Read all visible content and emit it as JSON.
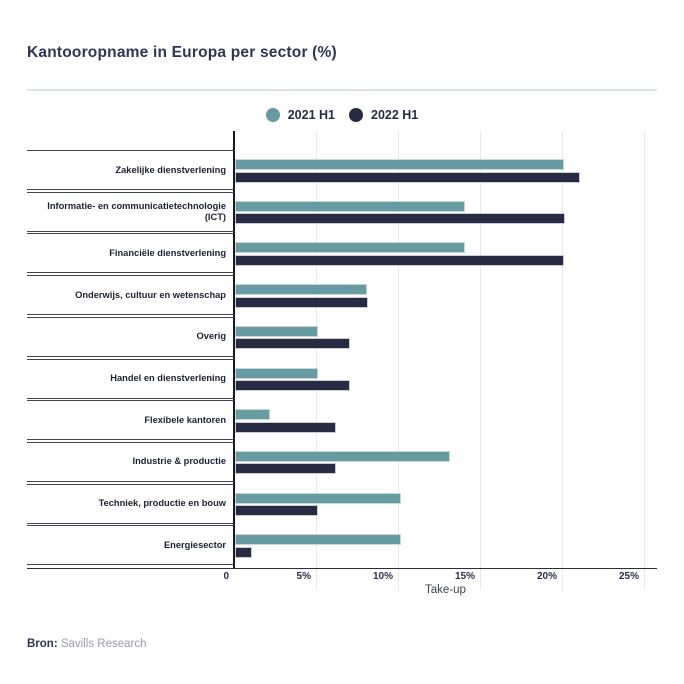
{
  "title": "Kantooropname in Europa per sector (%)",
  "chart_data": {
    "type": "bar",
    "orientation": "horizontal",
    "title": "Kantooropname in Europa per sector (%)",
    "categories": [
      "Zakelijke dienstverlening",
      "Informatie- en communicatietechnologie (ICT)",
      "Financiële dienstverlening",
      "Onderwijs, cultuur en wetenschap",
      "Overig",
      "Handel en dienstverlening",
      "Flexibele kantoren",
      "Industrie & productie",
      "Techniek, productie en bouw",
      "Energiesector"
    ],
    "series": [
      {
        "name": "2021 H1",
        "color": "#689aa2",
        "values": [
          20.1,
          14.1,
          14.1,
          8.1,
          5.1,
          5.1,
          2.2,
          13.2,
          10.2,
          10.2
        ]
      },
      {
        "name": "2022 H1",
        "color": "#262b41",
        "values": [
          21.1,
          20.2,
          20.1,
          8.2,
          7.1,
          7.1,
          6.2,
          6.2,
          5.1,
          1.1
        ]
      }
    ],
    "xlabel": "Take-up",
    "ylabel": "",
    "x_ticks": [
      "0",
      "5%",
      "10%",
      "15%",
      "20%",
      "25%"
    ],
    "xlim": [
      0,
      25
    ],
    "grid": true,
    "legend_position": "top-center"
  },
  "source": {
    "prefix": "Bron:",
    "text": " Savills Research"
  },
  "colors": {
    "teal": "#689aa2",
    "navy": "#262b41",
    "title_text": "#2f3550",
    "grid": "#e8e9ed",
    "cell_border": "#43454e",
    "source_gray": "#9b9ca6"
  }
}
